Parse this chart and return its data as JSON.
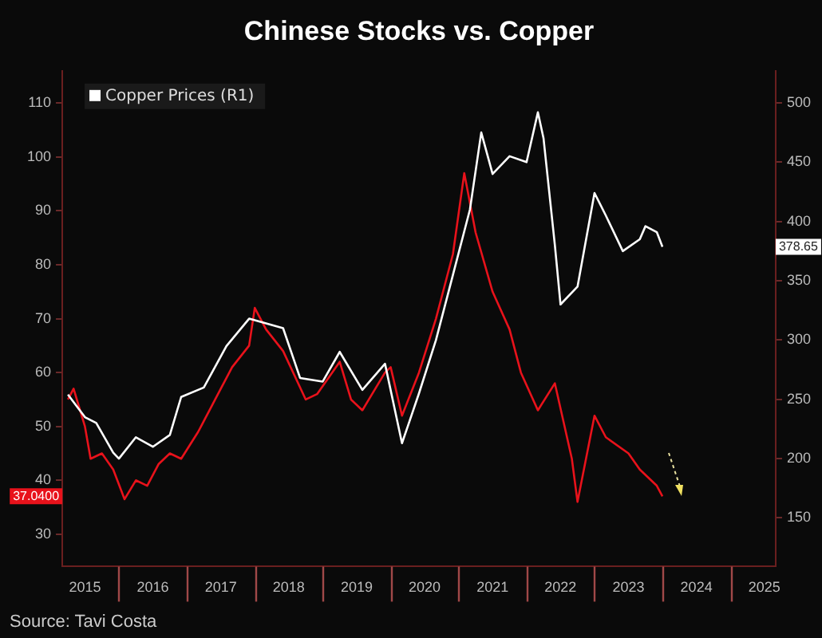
{
  "chart_data": {
    "type": "line",
    "title": "Chinese Stocks vs. Copper",
    "xlim": [
      "2015-03",
      "2025-09"
    ],
    "xticks": [
      {
        "value": "2015-07",
        "label": "2015"
      },
      {
        "value": "2016-07",
        "label": "2016"
      },
      {
        "value": "2017-07",
        "label": "2017"
      },
      {
        "value": "2018-07",
        "label": "2018"
      },
      {
        "value": "2019-07",
        "label": "2019"
      },
      {
        "value": "2020-07",
        "label": "2020"
      },
      {
        "value": "2021-07",
        "label": "2021"
      },
      {
        "value": "2022-07",
        "label": "2022"
      },
      {
        "value": "2023-07",
        "label": "2023"
      },
      {
        "value": "2024-07",
        "label": "2024"
      },
      {
        "value": "2025-07",
        "label": "2025"
      }
    ],
    "ylim": [
      24,
      116
    ],
    "yticks": [
      30,
      40,
      50,
      60,
      70,
      80,
      90,
      100,
      110
    ],
    "y2lim": [
      109,
      527
    ],
    "y2ticks": [
      150,
      200,
      250,
      300,
      350,
      400,
      450,
      500
    ],
    "legend": "top left",
    "series": [
      {
        "name": "Copper Prices (R1)",
        "color": "#ffffff",
        "axis": "y2",
        "x": [
          "2015-04",
          "2015-07",
          "2015-09",
          "2015-12",
          "2016-01",
          "2016-04",
          "2016-07",
          "2016-10",
          "2016-12",
          "2017-04",
          "2017-08",
          "2017-12",
          "2018-06",
          "2018-09",
          "2019-01",
          "2019-04",
          "2019-08",
          "2019-12",
          "2020-03",
          "2020-06",
          "2020-09",
          "2020-12",
          "2021-03",
          "2021-05",
          "2021-07",
          "2021-10",
          "2022-01",
          "2022-03",
          "2022-04",
          "2022-06",
          "2022-07",
          "2022-10",
          "2023-01",
          "2023-03",
          "2023-06",
          "2023-09",
          "2023-10",
          "2023-12",
          "2024-01"
        ],
        "values": [
          254,
          235,
          230,
          205,
          200,
          218,
          210,
          220,
          252,
          260,
          295,
          318,
          310,
          268,
          265,
          290,
          258,
          280,
          213,
          255,
          300,
          355,
          410,
          475,
          440,
          455,
          450,
          492,
          470,
          380,
          330,
          345,
          424,
          405,
          375,
          385,
          396,
          391,
          378.65
        ]
      },
      {
        "color": "#e8121b",
        "x": [
          "2015-04",
          "2015-05",
          "2015-07",
          "2015-08",
          "2015-10",
          "2015-12",
          "2016-02",
          "2016-04",
          "2016-06",
          "2016-08",
          "2016-10",
          "2016-12",
          "2017-03",
          "2017-06",
          "2017-09",
          "2017-12",
          "2018-01",
          "2018-03",
          "2018-06",
          "2018-10",
          "2018-12",
          "2019-04",
          "2019-06",
          "2019-08",
          "2019-12",
          "2020-01",
          "2020-03",
          "2020-06",
          "2020-09",
          "2020-12",
          "2021-02",
          "2021-04",
          "2021-07",
          "2021-10",
          "2021-12",
          "2022-03",
          "2022-06",
          "2022-09",
          "2022-10",
          "2023-01",
          "2023-03",
          "2023-07",
          "2023-09",
          "2023-12",
          "2024-01"
        ],
        "values": [
          55,
          57,
          50,
          44,
          45,
          42,
          36.5,
          40,
          39,
          43,
          45,
          44,
          49,
          55,
          61,
          65,
          72,
          68,
          64,
          55,
          56,
          62,
          55,
          53,
          60,
          61,
          52,
          60,
          70,
          82,
          97,
          86,
          75,
          68,
          60,
          53,
          58,
          44,
          36,
          52,
          48,
          45,
          42,
          39,
          37.04
        ]
      }
    ],
    "annotations": [
      "Source: Tavi Costa",
      "378.65",
      "37.0400"
    ]
  }
}
